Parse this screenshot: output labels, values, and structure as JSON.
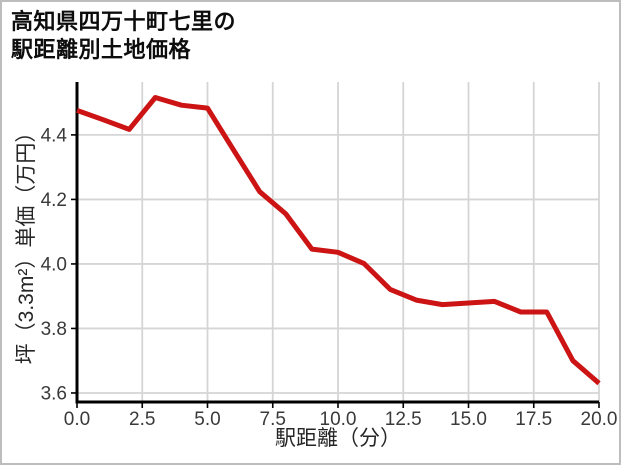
{
  "title": {
    "line1": "高知県四万十町七里の",
    "line2": "駅距離別土地価格"
  },
  "chart_data": {
    "type": "line",
    "title": "高知県四万十町七里の駅距離別土地価格",
    "xlabel": "駅距離（分）",
    "ylabel": "坪（3.3m²）単価（万円）",
    "x": [
      0,
      1,
      2,
      3,
      4,
      5,
      6,
      7,
      8,
      9,
      10,
      11,
      12,
      13,
      14,
      15,
      16,
      17,
      18,
      19,
      20
    ],
    "y": [
      4.476,
      4.447,
      4.417,
      4.516,
      4.492,
      4.483,
      4.353,
      4.224,
      4.155,
      4.046,
      4.036,
      4.001,
      3.921,
      3.888,
      3.874,
      3.879,
      3.884,
      3.851,
      3.851,
      3.7,
      3.63
    ],
    "xlim": [
      0,
      20
    ],
    "ylim": [
      3.572,
      4.564
    ],
    "xticks": {
      "values": [
        0,
        2.5,
        5,
        7.5,
        10,
        12.5,
        15,
        17.5,
        20
      ],
      "labels": [
        "0.0",
        "2.5",
        "5.0",
        "7.5",
        "10.0",
        "12.5",
        "15.0",
        "17.5",
        "20.0"
      ]
    },
    "yticks": {
      "values": [
        3.6,
        3.8,
        4.0,
        4.2,
        4.4
      ],
      "labels": [
        "3.6",
        "3.8",
        "4.0",
        "4.2",
        "4.4"
      ]
    },
    "grid": true,
    "legend": false,
    "line_color": "#cc1414",
    "grid_color": "#d5d5d5",
    "spine_color": "#000000",
    "tick_label_color": "#3a3a3a"
  }
}
